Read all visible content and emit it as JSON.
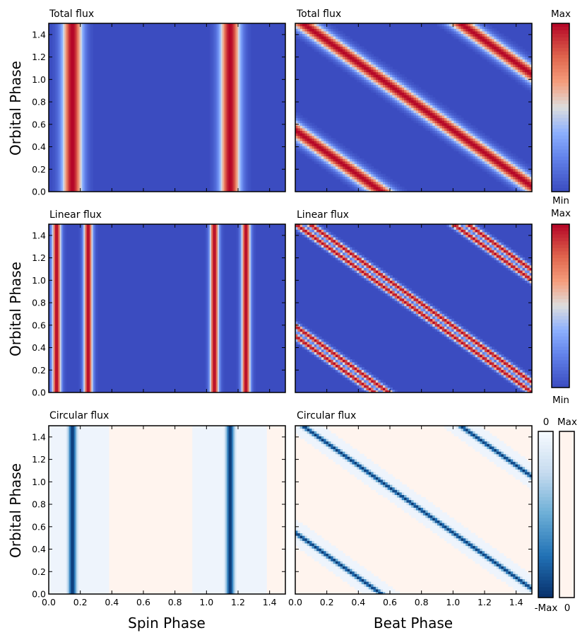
{
  "figure": {
    "ylabel": "Orbital Phase",
    "xlabel_left": "Spin Phase",
    "xlabel_right": "Beat Phase"
  },
  "chart_data": [
    {
      "type": "heatmap",
      "title": "Total flux",
      "xaxis": "spin",
      "quantity": "total",
      "xlim": [
        0,
        1.5
      ],
      "ylim": [
        0,
        1.5
      ],
      "colormap": "coolwarm",
      "xticks": [
        "0.0",
        "0.2",
        "0.4",
        "0.6",
        "0.8",
        "1.0",
        "1.2",
        "1.4"
      ],
      "yticks": [
        "0.0",
        "0.2",
        "0.4",
        "0.6",
        "0.8",
        "1.0",
        "1.2",
        "1.4"
      ],
      "x_tick_labels_shown": false
    },
    {
      "type": "heatmap",
      "title": "Total flux",
      "xaxis": "beat",
      "quantity": "total",
      "xlim": [
        0,
        1.5
      ],
      "ylim": [
        0,
        1.5
      ],
      "colormap": "coolwarm",
      "x_tick_labels_shown": false
    },
    {
      "type": "heatmap",
      "title": "Linear flux",
      "xaxis": "spin",
      "quantity": "linear",
      "xlim": [
        0,
        1.5
      ],
      "ylim": [
        0,
        1.5
      ],
      "colormap": "coolwarm",
      "x_tick_labels_shown": false
    },
    {
      "type": "heatmap",
      "title": "Linear flux",
      "xaxis": "beat",
      "quantity": "linear",
      "xlim": [
        0,
        1.5
      ],
      "ylim": [
        0,
        1.5
      ],
      "colormap": "coolwarm",
      "x_tick_labels_shown": false
    },
    {
      "type": "heatmap",
      "title": "Circular flux",
      "xaxis": "spin",
      "quantity": "circular",
      "xlim": [
        0,
        1.5
      ],
      "ylim": [
        0,
        1.5
      ],
      "colormap": "blues_diverging",
      "x_tick_labels_shown": true
    },
    {
      "type": "heatmap",
      "title": "Circular flux",
      "xaxis": "beat",
      "quantity": "circular",
      "xlim": [
        0,
        1.5
      ],
      "ylim": [
        0,
        1.5
      ],
      "colormap": "blues_diverging",
      "x_tick_labels_shown": true
    }
  ],
  "colorbars": [
    {
      "top_label": "Max",
      "bottom_label": "Min",
      "colormap": "coolwarm"
    },
    {
      "top_label": "Max",
      "bottom_label": "Min",
      "colormap": "coolwarm"
    },
    {
      "top_label": "0",
      "bottom_label": "-Max",
      "colormap": "blues"
    },
    {
      "top_label": "Max",
      "bottom_label": "0",
      "colormap": "oranges_pale"
    }
  ],
  "model": {
    "spin_peaks": [
      0.15,
      1.15
    ],
    "total_peak_width": 0.045,
    "linear_peaks": [
      0.05,
      0.25,
      1.05,
      1.25
    ],
    "linear_peak_width": 0.02,
    "circular_core_width": 0.018,
    "circular_halo_halfwidth": 0.12
  }
}
